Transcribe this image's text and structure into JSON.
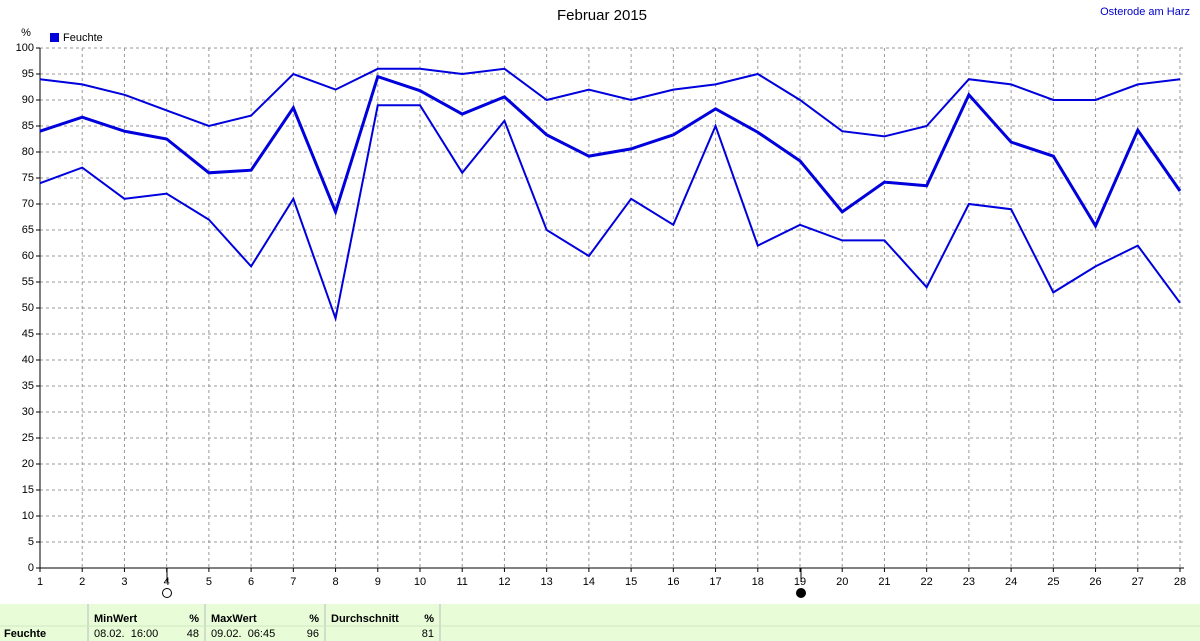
{
  "chart_data": {
    "type": "line",
    "title": "Februar 2015",
    "subtitle": "Osterode am Harz",
    "y_label": "%",
    "x": [
      1,
      2,
      3,
      4,
      5,
      6,
      7,
      8,
      9,
      10,
      11,
      12,
      13,
      14,
      15,
      16,
      17,
      18,
      19,
      20,
      21,
      22,
      23,
      24,
      25,
      26,
      27,
      28
    ],
    "xlim": [
      1,
      28
    ],
    "xticks": [
      1,
      2,
      3,
      4,
      5,
      6,
      7,
      8,
      9,
      10,
      11,
      12,
      13,
      14,
      15,
      16,
      17,
      18,
      19,
      20,
      21,
      22,
      23,
      24,
      25,
      26,
      27,
      28
    ],
    "ylim": [
      0,
      100
    ],
    "yticks": [
      0,
      5,
      10,
      15,
      20,
      25,
      30,
      35,
      40,
      45,
      50,
      55,
      60,
      65,
      70,
      75,
      80,
      85,
      90,
      95,
      100
    ],
    "grid": true,
    "legend": "top-left",
    "series": [
      {
        "name": "Feuchte",
        "color": "#0000dd",
        "values": [
          84,
          86.7,
          84,
          82.5,
          76,
          76.5,
          88.5,
          68.5,
          94.5,
          91.8,
          87.3,
          90.6,
          83.3,
          79.2,
          80.6,
          83.3,
          88.3,
          83.8,
          78.3,
          68.5,
          74.2,
          73.5,
          91,
          81.9,
          79.2,
          65.8,
          84.2,
          72.5
        ]
      },
      {
        "color": "#0000dd",
        "values": [
          94,
          93,
          91,
          88,
          85,
          87,
          95,
          92,
          96,
          96,
          95,
          96,
          90,
          92,
          90,
          92,
          93,
          95,
          90,
          84,
          83,
          85,
          94,
          93,
          90,
          90,
          93,
          94
        ]
      },
      {
        "color": "#0000dd",
        "values": [
          74,
          77,
          71,
          72,
          67,
          58,
          71,
          48,
          89,
          89,
          76,
          86,
          65,
          60,
          71,
          66,
          85,
          62,
          66,
          63,
          63,
          54,
          70,
          69,
          53,
          58,
          62,
          51
        ]
      }
    ]
  },
  "summary": {
    "label": "Feuchte",
    "columns": [
      {
        "header": "MinWert",
        "unit": "%",
        "time": "08.02.  16:00",
        "value": 48
      },
      {
        "header": "MaxWert",
        "unit": "%",
        "time": "09.02.  06:45",
        "value": 96
      },
      {
        "header": "Durchschnitt",
        "unit": "%",
        "value": 81
      }
    ]
  }
}
